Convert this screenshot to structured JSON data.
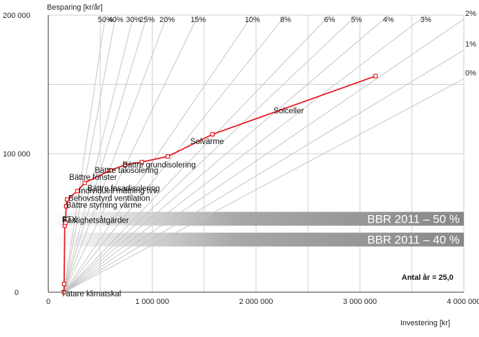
{
  "chart_data": {
    "type": "line",
    "xlabel": "Investering [kr]",
    "ylabel": "Besparing [kr/år]",
    "xlim": [
      0,
      4000000
    ],
    "ylim": [
      0,
      200000
    ],
    "x_ticks": [
      {
        "value": 0,
        "label": "0"
      },
      {
        "value": 1000000,
        "label": "1 000 000"
      },
      {
        "value": 2000000,
        "label": "2 000 000"
      },
      {
        "value": 3000000,
        "label": "3 000 000"
      },
      {
        "value": 4000000,
        "label": "4 000 000"
      }
    ],
    "y_ticks": [
      {
        "value": 0,
        "label": "0"
      },
      {
        "value": 100000,
        "label": "100 000"
      },
      {
        "value": 200000,
        "label": "200 000"
      }
    ],
    "grid": true,
    "origin": {
      "x": 150000,
      "y": 0
    },
    "series": [
      {
        "color": "#e8191e",
        "points": [
          {
            "x": 150000,
            "y": 0,
            "label": "Tätare klimatskal"
          },
          {
            "x": 152000,
            "y": 6000,
            "label": ""
          },
          {
            "x": 158000,
            "y": 48000,
            "label": "FTX"
          },
          {
            "x": 165000,
            "y": 50000,
            "label": "Fastighetsåtgärder"
          },
          {
            "x": 172000,
            "y": 62000,
            "label": "Bättre styrning värme"
          },
          {
            "x": 180000,
            "y": 67000,
            "label": "Behovsstyrd ventilation"
          },
          {
            "x": 280000,
            "y": 73000,
            "label": "Individuell mätning tvv"
          },
          {
            "x": 350000,
            "y": 79000,
            "label": "Bättre fasadisolering"
          },
          {
            "x": 600000,
            "y": 88000,
            "label": "Bättre fönster"
          },
          {
            "x": 740000,
            "y": 92000,
            "label": "Bättre takisolering"
          },
          {
            "x": 900000,
            "y": 94000,
            "label": "Bättre grundisolering"
          },
          {
            "x": 1150000,
            "y": 98000,
            "label": ""
          },
          {
            "x": 1580000,
            "y": 114000,
            "label": "Solvärme"
          },
          {
            "x": 3150000,
            "y": 156000,
            "label": "Solceller"
          }
        ]
      }
    ],
    "rays": [
      {
        "label": "0%",
        "slope": 0.04
      },
      {
        "label": "1%",
        "slope": 0.0454
      },
      {
        "label": "2%",
        "slope": 0.0512
      },
      {
        "label": "3%",
        "slope": 0.0574
      },
      {
        "label": "4%",
        "slope": 0.064
      },
      {
        "label": "5%",
        "slope": 0.071
      },
      {
        "label": "6%",
        "slope": 0.0782
      },
      {
        "label": "8%",
        "slope": 0.0937
      },
      {
        "label": "10%",
        "slope": 0.1102
      },
      {
        "label": "15%",
        "slope": 0.1547
      },
      {
        "label": "20%",
        "slope": 0.2012
      },
      {
        "label": "25%",
        "slope": 0.2496
      },
      {
        "label": "30%",
        "slope": 0.2981
      },
      {
        "label": "40%",
        "slope": 0.4
      },
      {
        "label": "50%",
        "slope": 0.5
      }
    ],
    "bands": [
      {
        "label": "BBR 2011 – 50 %",
        "y_range": [
          48000,
          58000
        ]
      },
      {
        "label": "BBR 2011 – 40 %",
        "y_range": [
          33000,
          43000
        ]
      }
    ],
    "annotations": [
      {
        "text": "Antal år = 25,0"
      }
    ]
  }
}
